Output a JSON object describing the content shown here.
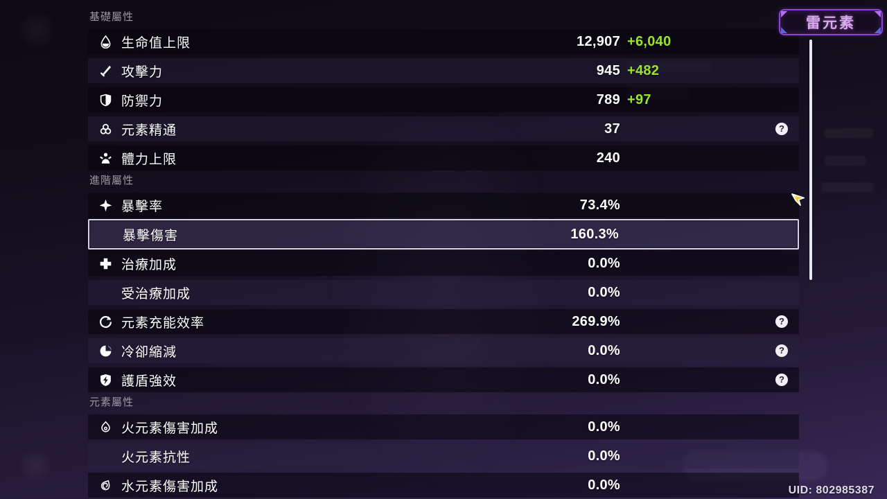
{
  "element_badge": {
    "label": "雷元素"
  },
  "footer": {
    "uid": "UID: 802985387"
  },
  "help_glyph": "?",
  "colors": {
    "bonus_green": "#9be32f",
    "badge_border": "#8f43d6",
    "badge_text": "#d9abec",
    "highlight_border": "#d5d4e0"
  },
  "sections": [
    {
      "title": "基礎屬性",
      "rows": [
        {
          "icon": "hp-drop-icon",
          "label": "生命值上限",
          "value": "12,907",
          "bonus": "+6,040",
          "help": false,
          "highlighted": false
        },
        {
          "icon": "attack-sword-icon",
          "label": "攻擊力",
          "value": "945",
          "bonus": "+482",
          "help": false,
          "highlighted": false
        },
        {
          "icon": "defense-shield-icon",
          "label": "防禦力",
          "value": "789",
          "bonus": "+97",
          "help": false,
          "highlighted": false
        },
        {
          "icon": "elemental-mastery-icon",
          "label": "元素精通",
          "value": "37",
          "bonus": "",
          "help": true,
          "highlighted": false
        },
        {
          "icon": "stamina-icon",
          "label": "體力上限",
          "value": "240",
          "bonus": "",
          "help": false,
          "highlighted": false
        }
      ]
    },
    {
      "title": "進階屬性",
      "rows": [
        {
          "icon": "crit-rate-icon",
          "label": "暴擊率",
          "value": "73.4%",
          "bonus": "",
          "help": false,
          "highlighted": false
        },
        {
          "icon": "",
          "label": "暴擊傷害",
          "value": "160.3%",
          "bonus": "",
          "help": false,
          "highlighted": true
        },
        {
          "icon": "healing-bonus-icon",
          "label": "治療加成",
          "value": "0.0%",
          "bonus": "",
          "help": false,
          "highlighted": false
        },
        {
          "icon": "",
          "label": "受治療加成",
          "value": "0.0%",
          "bonus": "",
          "help": false,
          "highlighted": false
        },
        {
          "icon": "energy-recharge-icon",
          "label": "元素充能效率",
          "value": "269.9%",
          "bonus": "",
          "help": true,
          "highlighted": false
        },
        {
          "icon": "cooldown-reduction-icon",
          "label": "冷卻縮減",
          "value": "0.0%",
          "bonus": "",
          "help": true,
          "highlighted": false
        },
        {
          "icon": "shield-strength-icon",
          "label": "護盾強效",
          "value": "0.0%",
          "bonus": "",
          "help": true,
          "highlighted": false
        }
      ]
    },
    {
      "title": "元素屬性",
      "rows": [
        {
          "icon": "pyro-icon",
          "label": "火元素傷害加成",
          "value": "0.0%",
          "bonus": "",
          "help": false,
          "highlighted": false
        },
        {
          "icon": "",
          "label": "火元素抗性",
          "value": "0.0%",
          "bonus": "",
          "help": false,
          "highlighted": false
        },
        {
          "icon": "hydro-icon",
          "label": "水元素傷害加成",
          "value": "0.0%",
          "bonus": "",
          "help": false,
          "highlighted": false
        }
      ]
    }
  ]
}
